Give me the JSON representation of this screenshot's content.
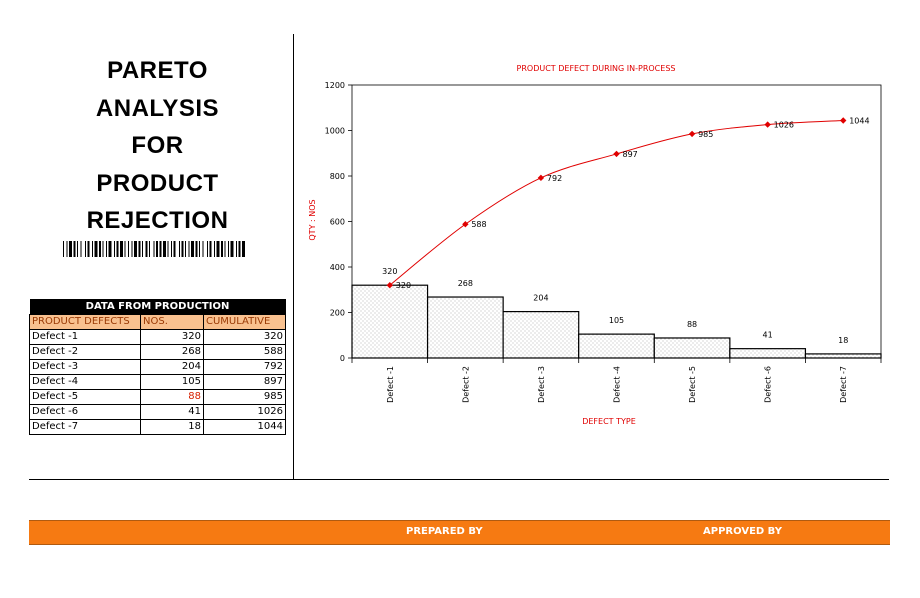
{
  "title": {
    "lines": [
      "PARETO",
      "ANALYSIS",
      "FOR",
      "PRODUCT",
      "REJECTION"
    ]
  },
  "table": {
    "heading": "DATA FROM PRODUCTION",
    "columns": [
      "PRODUCT DEFECTS",
      "NOS.",
      "CUMULATIVE"
    ],
    "rows": [
      {
        "defect": "Defect -1",
        "nos": "320",
        "cumulative": "320"
      },
      {
        "defect": "Defect -2",
        "nos": "268",
        "cumulative": "588"
      },
      {
        "defect": "Defect -3",
        "nos": "204",
        "cumulative": "792"
      },
      {
        "defect": "Defect -4",
        "nos": "105",
        "cumulative": "897"
      },
      {
        "defect": "Defect -5",
        "nos": "88",
        "cumulative": "985"
      },
      {
        "defect": "Defect -6",
        "nos": "41",
        "cumulative": "1026"
      },
      {
        "defect": "Defect -7",
        "nos": "18",
        "cumulative": "1044"
      }
    ]
  },
  "footer": {
    "prepared_by": "PREPARED BY",
    "approved_by": "APPROVED BY"
  },
  "colors": {
    "line": "#e00000",
    "accent": "#f67a12",
    "table_header": "#f9c18f"
  },
  "chart_data": {
    "type": "bar",
    "title": "PRODUCT DEFECT DURING IN-PROCESS",
    "xlabel": "DEFECT TYPE",
    "ylabel": "QTY : NOS",
    "ylim": [
      0,
      1200
    ],
    "yticks": [
      "0",
      "200",
      "400",
      "600",
      "800",
      "1000",
      "1200"
    ],
    "categories": [
      "Defect -1",
      "Defect -2",
      "Defect -3",
      "Defect -4",
      "Defect -5",
      "Defect -6",
      "Defect -7"
    ],
    "series": [
      {
        "kind": "bar",
        "values": [
          320,
          268,
          204,
          105,
          88,
          41,
          18
        ]
      },
      {
        "kind": "line",
        "values": [
          320,
          588,
          792,
          897,
          985,
          1026,
          1044
        ]
      }
    ],
    "grid": false,
    "legend": "none"
  }
}
